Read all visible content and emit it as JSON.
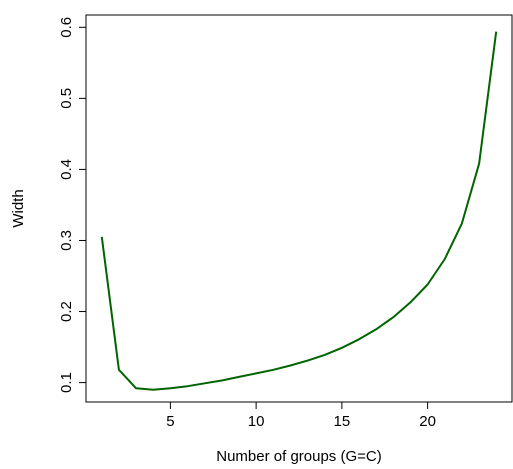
{
  "chart_data": {
    "type": "line",
    "title": "",
    "xlabel": "Number of groups (G=C)",
    "ylabel": "Width",
    "xlim": [
      0.08,
      24.92
    ],
    "ylim": [
      0.0727,
      0.6173
    ],
    "x_ticks": [
      5,
      10,
      15,
      20
    ],
    "y_ticks": [
      0.1,
      0.2,
      0.3,
      0.4,
      0.5,
      0.6
    ],
    "x_tick_labels": [
      "5",
      "10",
      "15",
      "20"
    ],
    "y_tick_labels": [
      "0.1",
      "0.2",
      "0.3",
      "0.4",
      "0.5",
      "0.6"
    ],
    "grid": false,
    "legend": "none",
    "series": [
      {
        "color": "#006400",
        "x": [
          1,
          2,
          3,
          4,
          5,
          6,
          7,
          8,
          9,
          10,
          11,
          12,
          13,
          14,
          15,
          16,
          17,
          18,
          19,
          20,
          21,
          22,
          23,
          24
        ],
        "y": [
          0.305,
          0.118,
          0.092,
          0.09,
          0.092,
          0.095,
          0.099,
          0.103,
          0.108,
          0.113,
          0.118,
          0.124,
          0.131,
          0.139,
          0.149,
          0.161,
          0.175,
          0.192,
          0.213,
          0.238,
          0.274,
          0.324,
          0.408,
          0.594
        ]
      }
    ]
  }
}
